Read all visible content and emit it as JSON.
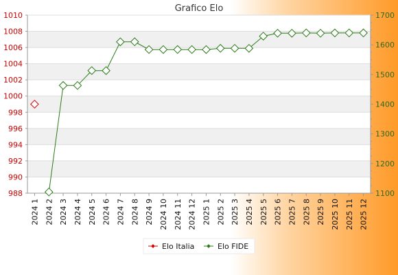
{
  "chart_data": {
    "type": "line",
    "title": "Grafico Elo",
    "categories": [
      "2024 1",
      "2024 2",
      "2024 3",
      "2024 4",
      "2024 5",
      "2024 6",
      "2024 7",
      "2024 8",
      "2024 9",
      "2024 10",
      "2024 11",
      "2024 12",
      "2025 1",
      "2025 2",
      "2025 3",
      "2025 4",
      "2025 5",
      "2025 6",
      "2025 7",
      "2025 8",
      "2025 9",
      "2025 10",
      "2025 11",
      "2025 12"
    ],
    "y_left": {
      "min": 988,
      "max": 1010,
      "ticks": [
        988,
        990,
        992,
        994,
        996,
        998,
        1000,
        1002,
        1004,
        1006,
        1008,
        1010
      ]
    },
    "y_right": {
      "min": 1100,
      "max": 1700,
      "ticks": [
        1100,
        1200,
        1300,
        1400,
        1500,
        1600,
        1700
      ]
    },
    "grid": "horizontal bands",
    "legend_position": "bottom",
    "series": [
      {
        "name": "Elo Italia",
        "axis": "left",
        "color": "#dd0000",
        "values": [
          999,
          null,
          null,
          null,
          null,
          null,
          null,
          null,
          null,
          null,
          null,
          null,
          null,
          null,
          null,
          null,
          null,
          null,
          null,
          null,
          null,
          null,
          null,
          null
        ]
      },
      {
        "name": "Elo FIDE",
        "axis": "right",
        "color": "#2a7a18",
        "values": [
          null,
          1104,
          1463,
          1463,
          1513,
          1513,
          1610,
          1610,
          1584,
          1584,
          1584,
          1584,
          1584,
          1588,
          1588,
          1588,
          1629,
          1639,
          1639,
          1640,
          1639,
          1640,
          1640,
          1640
        ]
      }
    ]
  }
}
